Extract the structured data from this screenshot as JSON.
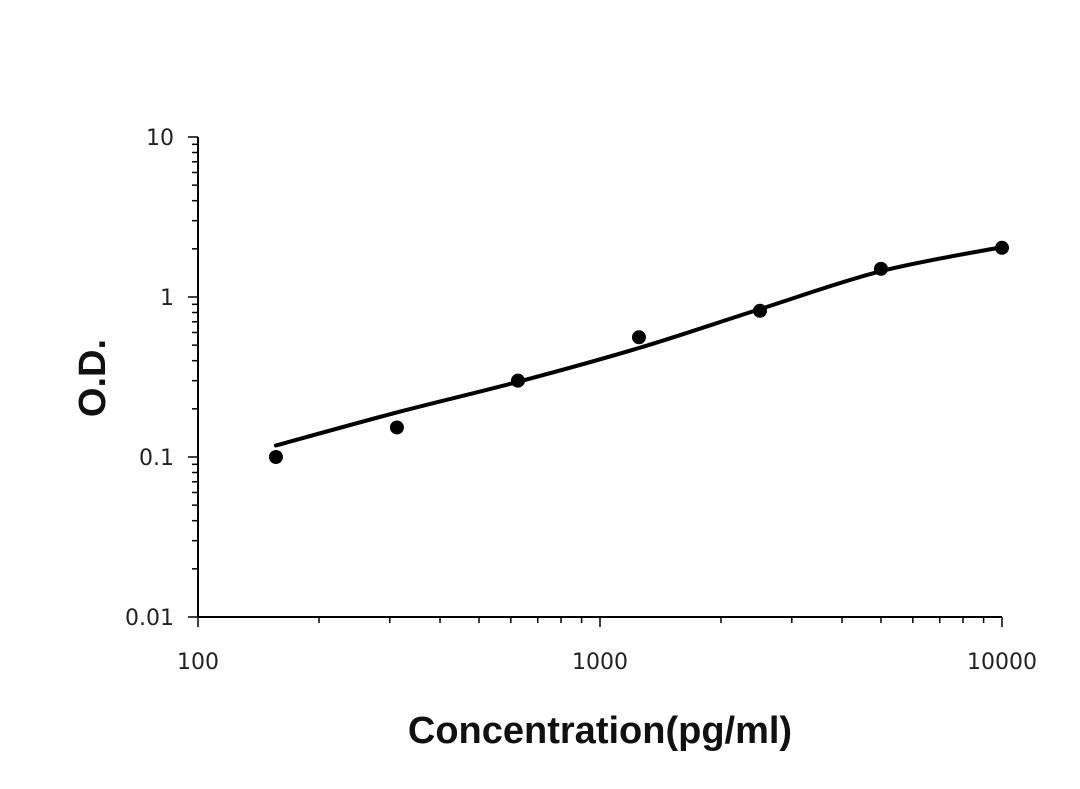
{
  "chart_data": {
    "type": "scatter",
    "title": "",
    "xlabel": "Concentration(pg/ml)",
    "ylabel": "O.D.",
    "x_scale": "log",
    "y_scale": "log",
    "xlim": [
      100,
      10000
    ],
    "ylim": [
      0.01,
      10
    ],
    "x_ticks": [
      {
        "value": 100,
        "label": "100"
      },
      {
        "value": 1000,
        "label": "1000"
      },
      {
        "value": 10000,
        "label": "10000"
      }
    ],
    "y_ticks": [
      {
        "value": 0.01,
        "label": "0.01"
      },
      {
        "value": 0.1,
        "label": "0.1"
      },
      {
        "value": 1,
        "label": "1"
      },
      {
        "value": 10,
        "label": "10"
      }
    ],
    "grid": false,
    "legend": "none",
    "series": [
      {
        "type": "scatter",
        "x": [
          156.25,
          312.5,
          625,
          1250,
          2500,
          5000,
          10000
        ],
        "y": [
          0.1,
          0.153,
          0.3,
          0.56,
          0.82,
          1.5,
          2.03
        ]
      },
      {
        "type": "line",
        "x": [
          156.25,
          312.5,
          625,
          1250,
          2500,
          5000,
          10000
        ],
        "y": [
          0.118,
          0.19,
          0.295,
          0.48,
          0.84,
          1.45,
          2.05
        ]
      }
    ],
    "colors": {
      "points": "#000000",
      "curve": "#000000",
      "axis": "#000000"
    }
  }
}
